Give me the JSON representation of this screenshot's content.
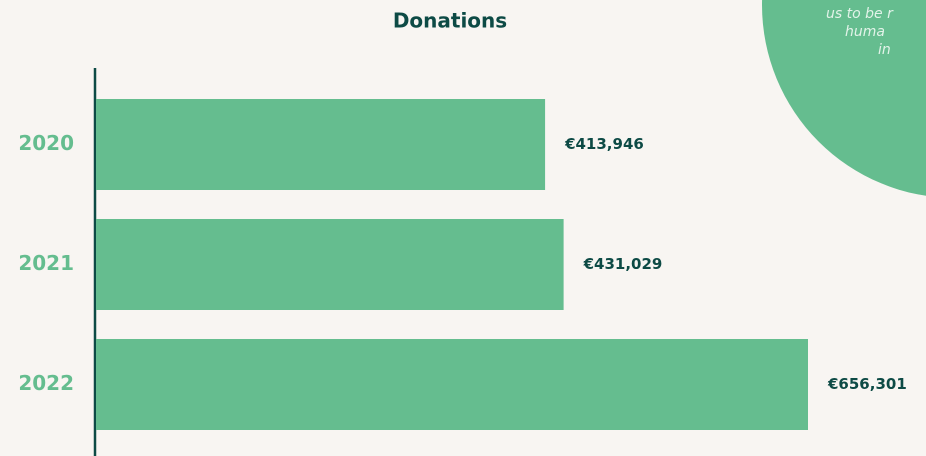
{
  "chart_data": {
    "type": "bar",
    "orientation": "horizontal",
    "title": "Donations",
    "categories": [
      "2020",
      "2021",
      "2022"
    ],
    "values": [
      413946,
      431029,
      656301
    ],
    "value_labels": [
      "€413,946",
      "€431,029",
      "€656,301"
    ],
    "color": "#65bd8f",
    "annotation_lines": [
      "us to be r",
      "huma",
      "in"
    ]
  }
}
